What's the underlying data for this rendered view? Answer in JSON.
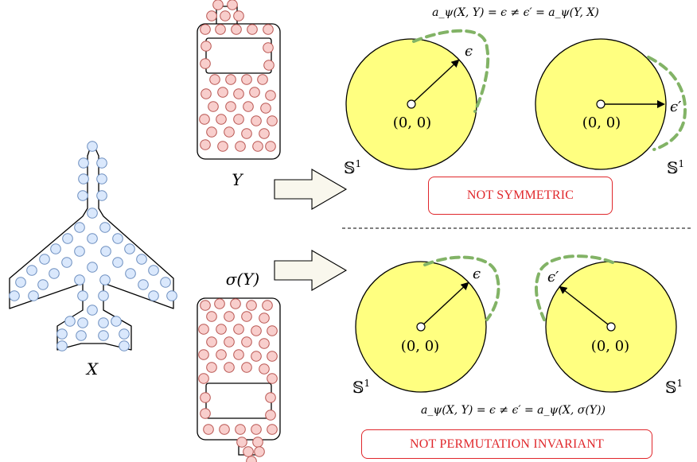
{
  "labels": {
    "x_label": "X",
    "y_label": "Y",
    "sigma_y_label": "σ(Y)",
    "top_equation": "a_ψ(X, Y) = ϵ ≠ ϵ′ = a_ψ(Y, X)",
    "bottom_equation": "a_ψ(X, Y) = ϵ ≠ ϵ′ = a_ψ(X, σ(Y))",
    "origin": "(0, 0)",
    "epsilon": "ϵ",
    "epsilon_prime": "ϵ′",
    "sphere": "𝕊",
    "sphere_superscript": "1"
  },
  "badges": {
    "top": "NOT SYMMETRIC",
    "bottom": "NOT PERMUTATION INVARIANT"
  },
  "colors": {
    "circle_fill": "#ffff80",
    "circle_stroke": "#000000",
    "dash_arc": "#82b366",
    "blue_points_fill": "#dae8fc",
    "blue_points_stroke": "#6c8ebf",
    "red_points_fill": "#f8cecc",
    "red_points_stroke": "#b85450",
    "arrow_fill": "#f9f7ed",
    "badge": "#e0272b"
  }
}
